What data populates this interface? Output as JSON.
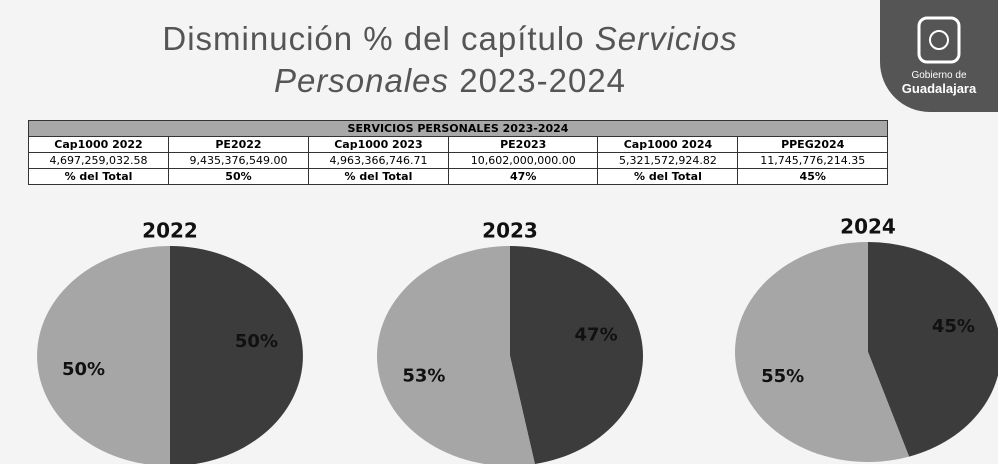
{
  "title": [
    "Disminución % del capítulo",
    "Servicios",
    "Personales",
    "2023-2024"
  ],
  "logo": [
    "Gobierno de",
    "Guadalajara"
  ],
  "table": {
    "title": "SERVICIOS PERSONALES 2023-2024",
    "rows": [
      [
        "Cap1000 2022",
        "PE2022",
        "Cap1000 2023",
        "PE2023",
        "Cap1000 2024",
        "PPEG2024"
      ],
      [
        "4,697,259,032.58",
        "9,435,376,549.00",
        "4,963,366,746.71",
        "10,602,000,000.00",
        "5,321,572,924.82",
        "11,745,776,214.35"
      ],
      [
        "% del Total",
        "50%",
        "% del Total",
        "47%",
        "% del Total",
        "45%"
      ]
    ]
  },
  "chart_data": [
    {
      "type": "pie",
      "title": "2022",
      "values": [
        50,
        50
      ],
      "value_labels": [
        "50%",
        "50%"
      ],
      "colors": [
        "#3c3c3c",
        "#a6a6a6"
      ]
    },
    {
      "type": "pie",
      "title": "2023",
      "values": [
        47,
        53
      ],
      "value_labels": [
        "47%",
        "53%"
      ],
      "colors": [
        "#3c3c3c",
        "#a6a6a6"
      ]
    },
    {
      "type": "pie",
      "title": "2024",
      "values": [
        45,
        55
      ],
      "value_labels": [
        "45%",
        "55%"
      ],
      "colors": [
        "#3c3c3c",
        "#a6a6a6"
      ]
    }
  ]
}
